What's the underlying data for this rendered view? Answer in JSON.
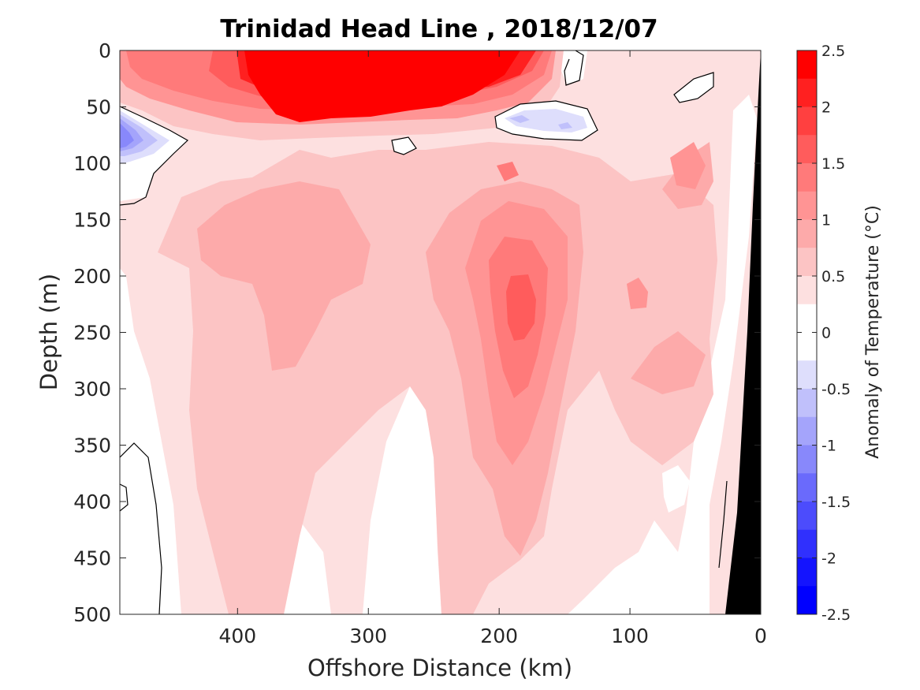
{
  "chart_data": {
    "type": "heatmap",
    "title": "Trinidad Head Line , 2018/12/07",
    "xlabel": "Offshore Distance (km)",
    "ylabel": "Depth (m)",
    "colorbar_label": "Anomaly of Temperature (°C)",
    "xlim": [
      490,
      0
    ],
    "ylim": [
      500,
      0
    ],
    "x_reversed": true,
    "y_reversed": true,
    "xticks": [
      400,
      300,
      200,
      100,
      0
    ],
    "yticks": [
      0,
      50,
      100,
      150,
      200,
      250,
      300,
      350,
      400,
      450,
      500
    ],
    "colorbar_ticks": [
      2.5,
      2,
      1.5,
      1,
      0.5,
      0,
      -0.5,
      -1,
      -1.5,
      -2,
      -2.5
    ],
    "colorbar_levels": [
      {
        "lo": 2.25,
        "color": "#ff0000"
      },
      {
        "lo": 2.0,
        "color": "#ff2020"
      },
      {
        "lo": 1.75,
        "color": "#ff4040"
      },
      {
        "lo": 1.5,
        "color": "#ff5c5c"
      },
      {
        "lo": 1.25,
        "color": "#ff7a7a"
      },
      {
        "lo": 1.0,
        "color": "#ff9494"
      },
      {
        "lo": 0.75,
        "color": "#fdaaaa"
      },
      {
        "lo": 0.5,
        "color": "#fcc4c4"
      },
      {
        "lo": 0.25,
        "color": "#fde0e0"
      },
      {
        "lo": 0.0,
        "color": "#ffffff"
      },
      {
        "lo": -0.25,
        "color": "#ffffff"
      },
      {
        "lo": -0.5,
        "color": "#dedefc"
      },
      {
        "lo": -0.75,
        "color": "#c0c0fb"
      },
      {
        "lo": -1.0,
        "color": "#a4a4fb"
      },
      {
        "lo": -1.25,
        "color": "#8888fb"
      },
      {
        "lo": -1.5,
        "color": "#6a6afc"
      },
      {
        "lo": -1.75,
        "color": "#4c4cfc"
      },
      {
        "lo": -2.0,
        "color": "#3030fd"
      },
      {
        "lo": -2.25,
        "color": "#1414fe"
      },
      {
        "lo": -2.5,
        "color": "#0000ff"
      }
    ],
    "grid": false,
    "features": {
      "warm_surface_core": {
        "x_range": [
          390,
          200
        ],
        "depth_range": [
          0,
          65
        ],
        "max_anomaly": 2.5
      },
      "subsurface_warm_core": {
        "center_km": 190,
        "center_depth_m": 230,
        "max_anomaly": 1.5
      },
      "cold_patch_west": {
        "center_km": 485,
        "center_depth_m": 75,
        "min_anomaly": -1.0
      },
      "cold_patch_mid": {
        "center_km": 175,
        "center_depth_m": 60,
        "min_anomaly": -0.5
      },
      "seafloor": {
        "color": "#000000",
        "x_at_surface_km": 0,
        "x_at_500m_km": 30
      }
    }
  }
}
